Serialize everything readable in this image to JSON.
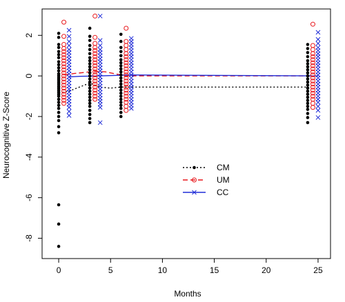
{
  "chart_data": {
    "type": "scatter",
    "title": "",
    "xlabel": "Months",
    "ylabel": "Neurocognitive Z-Score",
    "xlim": [
      -1.6,
      26.2
    ],
    "ylim": [
      -9,
      3.3
    ],
    "x_ticks": [
      0,
      5,
      10,
      15,
      20,
      25
    ],
    "x_tick_labels": [
      "0",
      "5",
      "10",
      "15",
      "20",
      "25"
    ],
    "y_ticks": [
      -8,
      -6,
      -4,
      -2,
      0,
      2
    ],
    "y_tick_labels": [
      "-8",
      "-6",
      "-4",
      "-2",
      "0",
      "2"
    ],
    "grid": false,
    "legend_position": "center",
    "series": [
      {
        "name": "CM",
        "color": "#000000",
        "marker": "filled-circle",
        "line": "dotted",
        "trend": [
          [
            0,
            -0.85
          ],
          [
            0.5,
            -0.8
          ],
          [
            1,
            -0.75
          ],
          [
            2,
            -0.55
          ],
          [
            3,
            -0.35
          ],
          [
            3.5,
            -0.45
          ],
          [
            4,
            -0.55
          ],
          [
            5,
            -0.6
          ],
          [
            6,
            -0.55
          ],
          [
            7,
            -0.55
          ],
          [
            24,
            -0.55
          ]
        ],
        "points": [
          [
            0,
            -8.4
          ],
          [
            0,
            -7.3
          ],
          [
            0,
            -6.35
          ],
          [
            0,
            -2.8
          ],
          [
            0,
            -2.5
          ],
          [
            0,
            -2.2
          ],
          [
            0,
            -2.0
          ],
          [
            0,
            -1.8
          ],
          [
            0,
            -1.6
          ],
          [
            0,
            -1.45
          ],
          [
            0,
            -1.3
          ],
          [
            0,
            -1.15
          ],
          [
            0,
            -1.0
          ],
          [
            0,
            -0.9
          ],
          [
            0,
            -0.8
          ],
          [
            0,
            -0.7
          ],
          [
            0,
            -0.6
          ],
          [
            0,
            -0.5
          ],
          [
            0,
            -0.4
          ],
          [
            0,
            -0.3
          ],
          [
            0,
            -0.2
          ],
          [
            0,
            -0.1
          ],
          [
            0,
            0.0
          ],
          [
            0,
            0.1
          ],
          [
            0,
            0.25
          ],
          [
            0,
            0.4
          ],
          [
            0,
            0.55
          ],
          [
            0,
            0.7
          ],
          [
            0,
            0.9
          ],
          [
            0,
            1.05
          ],
          [
            0,
            1.2
          ],
          [
            0,
            1.4
          ],
          [
            0,
            1.55
          ],
          [
            0,
            1.9
          ],
          [
            0,
            2.1
          ],
          [
            3,
            -2.3
          ],
          [
            3,
            -2.1
          ],
          [
            3,
            -1.9
          ],
          [
            3,
            -1.7
          ],
          [
            3,
            -1.5
          ],
          [
            3,
            -1.35
          ],
          [
            3,
            -1.2
          ],
          [
            3,
            -1.05
          ],
          [
            3,
            -0.9
          ],
          [
            3,
            -0.75
          ],
          [
            3,
            -0.6
          ],
          [
            3,
            -0.45
          ],
          [
            3,
            -0.3
          ],
          [
            3,
            -0.15
          ],
          [
            3,
            0.0
          ],
          [
            3,
            0.15
          ],
          [
            3,
            0.3
          ],
          [
            3,
            0.45
          ],
          [
            3,
            0.6
          ],
          [
            3,
            0.75
          ],
          [
            3,
            0.9
          ],
          [
            3,
            1.1
          ],
          [
            3,
            1.3
          ],
          [
            3,
            1.5
          ],
          [
            3,
            1.75
          ],
          [
            3,
            1.95
          ],
          [
            3,
            2.35
          ],
          [
            6,
            -2.0
          ],
          [
            6,
            -1.8
          ],
          [
            6,
            -1.6
          ],
          [
            6,
            -1.45
          ],
          [
            6,
            -1.3
          ],
          [
            6,
            -1.15
          ],
          [
            6,
            -1.0
          ],
          [
            6,
            -0.85
          ],
          [
            6,
            -0.7
          ],
          [
            6,
            -0.55
          ],
          [
            6,
            -0.4
          ],
          [
            6,
            -0.25
          ],
          [
            6,
            -0.1
          ],
          [
            6,
            0.05
          ],
          [
            6,
            0.2
          ],
          [
            6,
            0.35
          ],
          [
            6,
            0.5
          ],
          [
            6,
            0.65
          ],
          [
            6,
            0.8
          ],
          [
            6,
            1.0
          ],
          [
            6,
            1.2
          ],
          [
            6,
            1.4
          ],
          [
            6,
            1.7
          ],
          [
            6,
            2.05
          ],
          [
            24,
            -2.3
          ],
          [
            24,
            -2.05
          ],
          [
            24,
            -1.85
          ],
          [
            24,
            -1.65
          ],
          [
            24,
            -1.5
          ],
          [
            24,
            -1.35
          ],
          [
            24,
            -1.2
          ],
          [
            24,
            -1.05
          ],
          [
            24,
            -0.9
          ],
          [
            24,
            -0.75
          ],
          [
            24,
            -0.6
          ],
          [
            24,
            -0.45
          ],
          [
            24,
            -0.3
          ],
          [
            24,
            -0.15
          ],
          [
            24,
            0.0
          ],
          [
            24,
            0.15
          ],
          [
            24,
            0.3
          ],
          [
            24,
            0.45
          ],
          [
            24,
            0.6
          ],
          [
            24,
            0.75
          ],
          [
            24,
            0.95
          ],
          [
            24,
            1.15
          ],
          [
            24,
            1.35
          ],
          [
            24,
            1.55
          ]
        ]
      },
      {
        "name": "UM",
        "color": "#e8161b",
        "marker": "open-circle",
        "line": "dashed",
        "trend": [
          [
            0.5,
            0.05
          ],
          [
            1.5,
            0.12
          ],
          [
            3,
            0.2
          ],
          [
            3.5,
            0.22
          ],
          [
            4.5,
            0.2
          ],
          [
            6,
            0.05
          ],
          [
            6.5,
            0.0
          ],
          [
            24.5,
            0.0
          ]
        ],
        "points": [
          [
            0.5,
            -1.35
          ],
          [
            0.5,
            -1.2
          ],
          [
            0.5,
            -1.05
          ],
          [
            0.5,
            -0.9
          ],
          [
            0.5,
            -0.75
          ],
          [
            0.5,
            -0.6
          ],
          [
            0.5,
            -0.45
          ],
          [
            0.5,
            -0.3
          ],
          [
            0.5,
            -0.15
          ],
          [
            0.5,
            0.0
          ],
          [
            0.5,
            0.15
          ],
          [
            0.5,
            0.3
          ],
          [
            0.5,
            0.45
          ],
          [
            0.5,
            0.6
          ],
          [
            0.5,
            0.75
          ],
          [
            0.5,
            0.9
          ],
          [
            0.5,
            1.05
          ],
          [
            0.5,
            1.2
          ],
          [
            0.5,
            1.35
          ],
          [
            0.5,
            1.55
          ],
          [
            0.5,
            1.95
          ],
          [
            0.5,
            2.65
          ],
          [
            3.5,
            -1.15
          ],
          [
            3.5,
            -1.0
          ],
          [
            3.5,
            -0.85
          ],
          [
            3.5,
            -0.7
          ],
          [
            3.5,
            -0.55
          ],
          [
            3.5,
            -0.4
          ],
          [
            3.5,
            -0.25
          ],
          [
            3.5,
            -0.1
          ],
          [
            3.5,
            0.05
          ],
          [
            3.5,
            0.2
          ],
          [
            3.5,
            0.35
          ],
          [
            3.5,
            0.5
          ],
          [
            3.5,
            0.65
          ],
          [
            3.5,
            0.8
          ],
          [
            3.5,
            0.95
          ],
          [
            3.5,
            1.1
          ],
          [
            3.5,
            1.25
          ],
          [
            3.5,
            1.4
          ],
          [
            3.5,
            1.6
          ],
          [
            3.5,
            1.9
          ],
          [
            3.5,
            2.95
          ],
          [
            6.5,
            -1.7
          ],
          [
            6.5,
            -1.5
          ],
          [
            6.5,
            -1.3
          ],
          [
            6.5,
            -1.15
          ],
          [
            6.5,
            -1.0
          ],
          [
            6.5,
            -0.85
          ],
          [
            6.5,
            -0.7
          ],
          [
            6.5,
            -0.55
          ],
          [
            6.5,
            -0.4
          ],
          [
            6.5,
            -0.25
          ],
          [
            6.5,
            -0.1
          ],
          [
            6.5,
            0.05
          ],
          [
            6.5,
            0.2
          ],
          [
            6.5,
            0.35
          ],
          [
            6.5,
            0.5
          ],
          [
            6.5,
            0.65
          ],
          [
            6.5,
            0.8
          ],
          [
            6.5,
            0.95
          ],
          [
            6.5,
            1.1
          ],
          [
            6.5,
            1.3
          ],
          [
            6.5,
            1.5
          ],
          [
            6.5,
            1.7
          ],
          [
            6.5,
            2.35
          ],
          [
            24.5,
            -1.55
          ],
          [
            24.5,
            -1.35
          ],
          [
            24.5,
            -1.15
          ],
          [
            24.5,
            -1.0
          ],
          [
            24.5,
            -0.85
          ],
          [
            24.5,
            -0.7
          ],
          [
            24.5,
            -0.55
          ],
          [
            24.5,
            -0.4
          ],
          [
            24.5,
            -0.25
          ],
          [
            24.5,
            -0.1
          ],
          [
            24.5,
            0.05
          ],
          [
            24.5,
            0.2
          ],
          [
            24.5,
            0.35
          ],
          [
            24.5,
            0.5
          ],
          [
            24.5,
            0.65
          ],
          [
            24.5,
            0.8
          ],
          [
            24.5,
            0.95
          ],
          [
            24.5,
            1.1
          ],
          [
            24.5,
            1.3
          ],
          [
            24.5,
            1.5
          ],
          [
            24.5,
            2.55
          ]
        ]
      },
      {
        "name": "CC",
        "color": "#1e2bd7",
        "marker": "x",
        "line": "solid",
        "trend": [
          [
            1,
            -0.05
          ],
          [
            2,
            -0.02
          ],
          [
            4,
            0.0
          ],
          [
            7,
            0.05
          ],
          [
            25,
            0.0
          ]
        ],
        "points": [
          [
            1,
            -1.95
          ],
          [
            1,
            -1.75
          ],
          [
            1,
            -1.55
          ],
          [
            1,
            -1.4
          ],
          [
            1,
            -1.25
          ],
          [
            1,
            -1.1
          ],
          [
            1,
            -0.95
          ],
          [
            1,
            -0.8
          ],
          [
            1,
            -0.65
          ],
          [
            1,
            -0.5
          ],
          [
            1,
            -0.35
          ],
          [
            1,
            -0.2
          ],
          [
            1,
            -0.05
          ],
          [
            1,
            0.1
          ],
          [
            1,
            0.25
          ],
          [
            1,
            0.4
          ],
          [
            1,
            0.55
          ],
          [
            1,
            0.7
          ],
          [
            1,
            0.85
          ],
          [
            1,
            1.0
          ],
          [
            1,
            1.15
          ],
          [
            1,
            1.3
          ],
          [
            1,
            1.5
          ],
          [
            1,
            1.7
          ],
          [
            1,
            1.95
          ],
          [
            1,
            2.25
          ],
          [
            4,
            -2.3
          ],
          [
            4,
            -1.55
          ],
          [
            4,
            -1.4
          ],
          [
            4,
            -1.25
          ],
          [
            4,
            -1.1
          ],
          [
            4,
            -0.95
          ],
          [
            4,
            -0.8
          ],
          [
            4,
            -0.65
          ],
          [
            4,
            -0.5
          ],
          [
            4,
            -0.35
          ],
          [
            4,
            -0.2
          ],
          [
            4,
            -0.05
          ],
          [
            4,
            0.1
          ],
          [
            4,
            0.25
          ],
          [
            4,
            0.4
          ],
          [
            4,
            0.55
          ],
          [
            4,
            0.7
          ],
          [
            4,
            0.85
          ],
          [
            4,
            1.0
          ],
          [
            4,
            1.15
          ],
          [
            4,
            1.3
          ],
          [
            4,
            1.5
          ],
          [
            4,
            1.75
          ],
          [
            4,
            2.95
          ],
          [
            7,
            -1.6
          ],
          [
            7,
            -1.45
          ],
          [
            7,
            -1.3
          ],
          [
            7,
            -1.15
          ],
          [
            7,
            -1.0
          ],
          [
            7,
            -0.85
          ],
          [
            7,
            -0.7
          ],
          [
            7,
            -0.55
          ],
          [
            7,
            -0.4
          ],
          [
            7,
            -0.25
          ],
          [
            7,
            -0.1
          ],
          [
            7,
            0.05
          ],
          [
            7,
            0.2
          ],
          [
            7,
            0.35
          ],
          [
            7,
            0.5
          ],
          [
            7,
            0.65
          ],
          [
            7,
            0.8
          ],
          [
            7,
            0.95
          ],
          [
            7,
            1.1
          ],
          [
            7,
            1.25
          ],
          [
            7,
            1.4
          ],
          [
            7,
            1.55
          ],
          [
            7,
            1.7
          ],
          [
            7,
            1.85
          ],
          [
            25,
            -2.05
          ],
          [
            25,
            -1.7
          ],
          [
            25,
            -1.5
          ],
          [
            25,
            -1.3
          ],
          [
            25,
            -1.15
          ],
          [
            25,
            -1.0
          ],
          [
            25,
            -0.85
          ],
          [
            25,
            -0.7
          ],
          [
            25,
            -0.55
          ],
          [
            25,
            -0.4
          ],
          [
            25,
            -0.25
          ],
          [
            25,
            -0.1
          ],
          [
            25,
            0.05
          ],
          [
            25,
            0.2
          ],
          [
            25,
            0.35
          ],
          [
            25,
            0.5
          ],
          [
            25,
            0.65
          ],
          [
            25,
            0.8
          ],
          [
            25,
            0.95
          ],
          [
            25,
            1.1
          ],
          [
            25,
            1.25
          ],
          [
            25,
            1.4
          ],
          [
            25,
            1.6
          ],
          [
            25,
            1.8
          ],
          [
            25,
            2.15
          ]
        ]
      }
    ]
  }
}
